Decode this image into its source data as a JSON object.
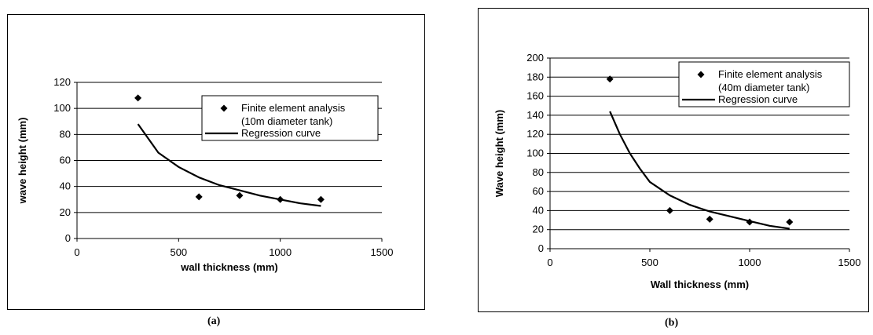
{
  "captions": {
    "a": "(a)",
    "b": "(b)"
  },
  "chart_data": [
    {
      "type": "scatter",
      "xlabel": "wall thickness (mm)",
      "ylabel": "wave height (mm)",
      "xlim": [
        0,
        1500
      ],
      "ylim": [
        0,
        120
      ],
      "xticks": [
        0,
        500,
        1000,
        1500
      ],
      "yticks": [
        0,
        20,
        40,
        60,
        80,
        100,
        120
      ],
      "grid": "horizontal",
      "legend_placement": "top-right",
      "series": [
        {
          "name": "Finite element analysis",
          "name_line2": "(10m diameter tank)",
          "kind": "points",
          "marker": "diamond",
          "x": [
            300,
            600,
            800,
            1000,
            1200
          ],
          "y": [
            108,
            32,
            33,
            30,
            30
          ]
        },
        {
          "name": "Regression curve",
          "kind": "line",
          "x": [
            300,
            400,
            500,
            600,
            700,
            800,
            900,
            1000,
            1100,
            1200
          ],
          "y": [
            88,
            66,
            55,
            47,
            41,
            37,
            33,
            30,
            27,
            25
          ]
        }
      ]
    },
    {
      "type": "scatter",
      "xlabel": "Wall  thickness (mm)",
      "ylabel": "Wave height (mm)",
      "xlim": [
        0,
        1500
      ],
      "ylim": [
        0,
        200
      ],
      "xticks": [
        0,
        500,
        1000,
        1500
      ],
      "yticks": [
        0,
        20,
        40,
        60,
        80,
        100,
        120,
        140,
        160,
        180,
        200
      ],
      "grid": "horizontal",
      "legend_placement": "top-right",
      "series": [
        {
          "name": "Finite element analysis",
          "name_line2": "(40m diameter tank)",
          "kind": "points",
          "marker": "diamond",
          "x": [
            300,
            600,
            800,
            1000,
            1200
          ],
          "y": [
            178,
            40,
            31,
            28,
            28
          ]
        },
        {
          "name": "Regression curve",
          "kind": "line",
          "x": [
            300,
            350,
            400,
            450,
            500,
            600,
            700,
            800,
            900,
            1000,
            1100,
            1200
          ],
          "y": [
            144,
            120,
            100,
            84,
            70,
            56,
            46,
            39,
            34,
            29,
            24,
            21
          ]
        }
      ]
    }
  ]
}
